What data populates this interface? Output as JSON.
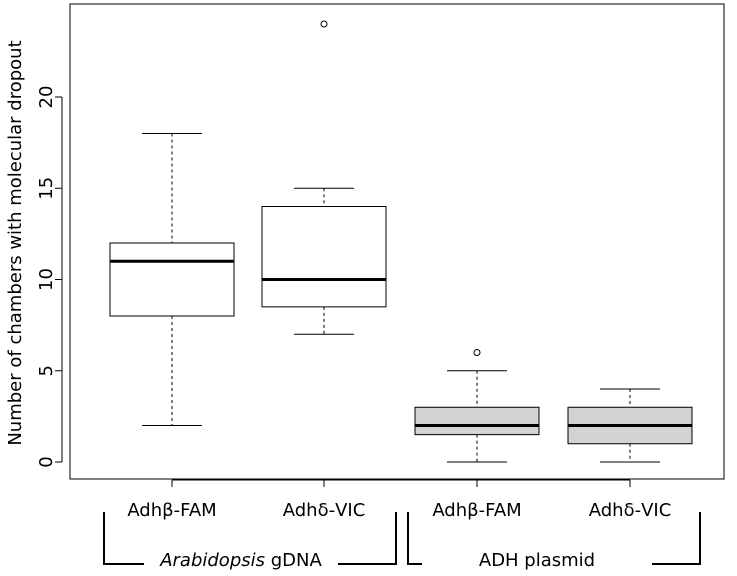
{
  "chart_data": {
    "type": "box",
    "ylabel": "Number of chambers with molecular dropout",
    "ylim": [
      0,
      24
    ],
    "yticks": [
      0,
      5,
      10,
      15,
      20
    ],
    "categories": [
      "Adhβ-FAM",
      "Adhδ-VIC",
      "Adhβ-FAM",
      "Adhδ-VIC"
    ],
    "boxes": [
      {
        "label": "Adhβ-FAM",
        "group": "Arabidopsis gDNA",
        "fill": "#ffffff",
        "whisker_low": 2,
        "q1": 8,
        "median": 11,
        "q3": 12,
        "whisker_high": 18,
        "outliers": []
      },
      {
        "label": "Adhδ-VIC",
        "group": "Arabidopsis gDNA",
        "fill": "#ffffff",
        "whisker_low": 7,
        "q1": 8.5,
        "median": 10,
        "q3": 14,
        "whisker_high": 15,
        "outliers": [
          24
        ]
      },
      {
        "label": "Adhβ-FAM",
        "group": "ADH plasmid",
        "fill": "#d3d3d3",
        "whisker_low": 0,
        "q1": 1.5,
        "median": 2,
        "q3": 3,
        "whisker_high": 5,
        "outliers": [
          6
        ]
      },
      {
        "label": "Adhδ-VIC",
        "group": "ADH plasmid",
        "fill": "#d3d3d3",
        "whisker_low": 0,
        "q1": 1,
        "median": 2,
        "q3": 3,
        "whisker_high": 4,
        "outliers": []
      }
    ],
    "groups": [
      {
        "italic": "Arabidopsis",
        "rest": " gDNA",
        "boxes": [
          0,
          1
        ]
      },
      {
        "italic": "",
        "rest": "ADH plasmid",
        "boxes": [
          2,
          3
        ]
      }
    ],
    "grid": false,
    "legend": "none"
  }
}
